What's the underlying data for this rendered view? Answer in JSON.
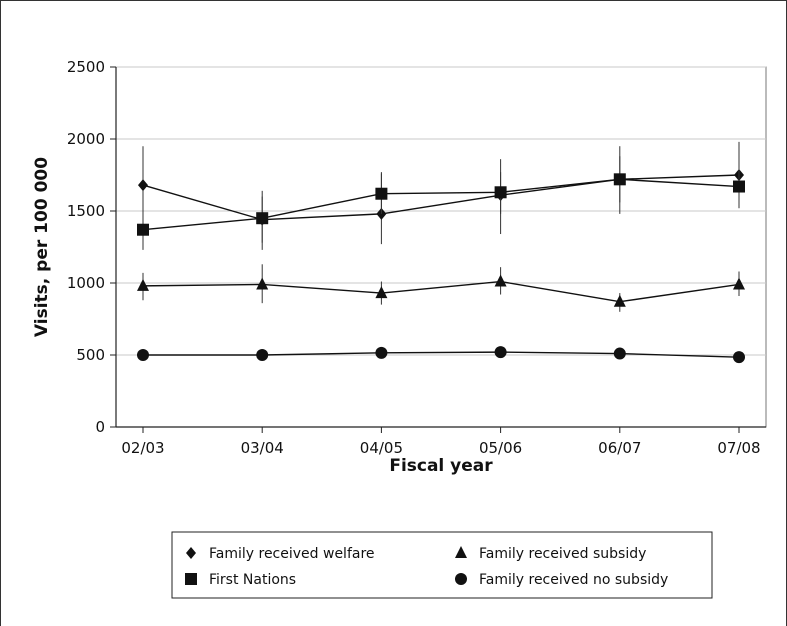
{
  "chart_data": {
    "type": "line",
    "title": "",
    "xlabel": "Fiscal year",
    "ylabel": "Visits, per 100 000",
    "categories": [
      "02/03",
      "03/04",
      "04/05",
      "05/06",
      "06/07",
      "07/08"
    ],
    "ylim": [
      0,
      2500
    ],
    "yticks": [
      0,
      500,
      1000,
      1500,
      2000,
      2500
    ],
    "grid": true,
    "legend_position": "bottom",
    "series": [
      {
        "name": "Family received welfare",
        "marker": "diamond",
        "values": [
          1680,
          1440,
          1480,
          1610,
          1720,
          1750
        ],
        "err_low": [
          1340,
          1230,
          1270,
          1340,
          1480,
          1520
        ],
        "err_high": [
          1950,
          1640,
          1760,
          1860,
          1950,
          1980
        ]
      },
      {
        "name": "First Nations",
        "marker": "square",
        "values": [
          1370,
          1450,
          1620,
          1630,
          1720,
          1670
        ],
        "err_low": [
          1230,
          1280,
          1480,
          1480,
          1560,
          1520
        ],
        "err_high": [
          1510,
          1600,
          1770,
          1770,
          1880,
          1810
        ]
      },
      {
        "name": "Family received subsidy",
        "marker": "triangle",
        "values": [
          980,
          990,
          930,
          1010,
          870,
          990
        ],
        "err_low": [
          880,
          860,
          850,
          920,
          800,
          910
        ],
        "err_high": [
          1070,
          1130,
          1010,
          1110,
          930,
          1080
        ]
      },
      {
        "name": "Family received no subsidy",
        "marker": "circle",
        "values": [
          500,
          500,
          515,
          520,
          510,
          485
        ],
        "err_low": [
          485,
          485,
          500,
          505,
          495,
          470
        ],
        "err_high": [
          515,
          515,
          530,
          535,
          525,
          500
        ]
      }
    ]
  }
}
